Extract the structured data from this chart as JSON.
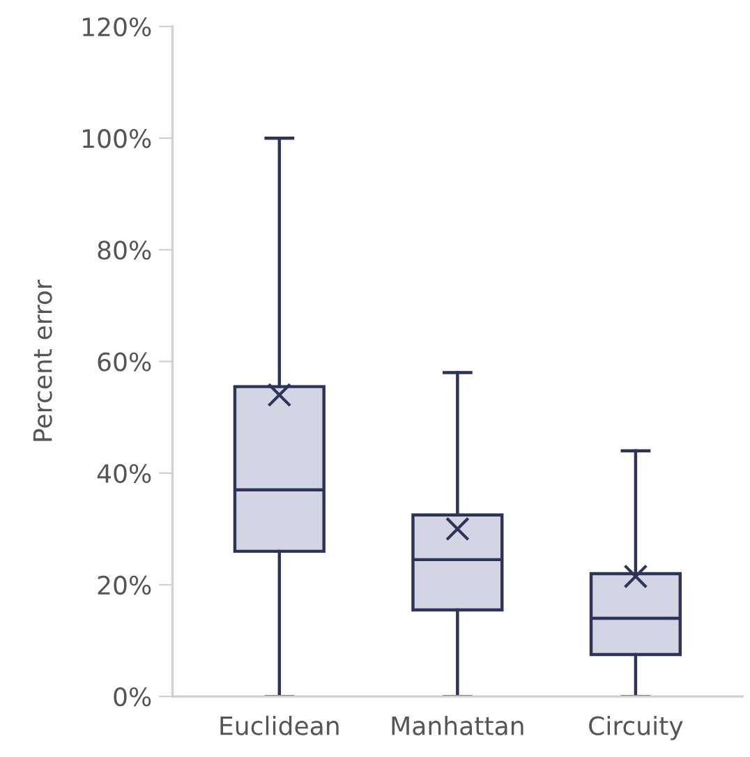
{
  "chart_data": {
    "type": "box",
    "ylabel": "Percent error",
    "categories": [
      "Euclidean",
      "Manhattan",
      "Circuity"
    ],
    "boxes": [
      {
        "low": 0,
        "q1": 26,
        "median": 37,
        "q3": 55.5,
        "high": 100,
        "mean": 54
      },
      {
        "low": 0,
        "q1": 15.5,
        "median": 24.5,
        "q3": 32.5,
        "high": 58,
        "mean": 30
      },
      {
        "low": 0,
        "q1": 7.5,
        "median": 14,
        "q3": 22,
        "high": 44,
        "mean": 21.5
      }
    ],
    "color": "#d3d5e4",
    "ylim": [
      0,
      120
    ],
    "yticks": [
      {
        "value": 0,
        "label": "0%"
      },
      {
        "value": 20,
        "label": "20%"
      },
      {
        "value": 40,
        "label": "40%"
      },
      {
        "value": 60,
        "label": "60%"
      },
      {
        "value": 80,
        "label": "80%"
      },
      {
        "value": 100,
        "label": "100%"
      },
      {
        "value": 120,
        "label": "120%"
      }
    ],
    "grid": false,
    "legend": false
  }
}
